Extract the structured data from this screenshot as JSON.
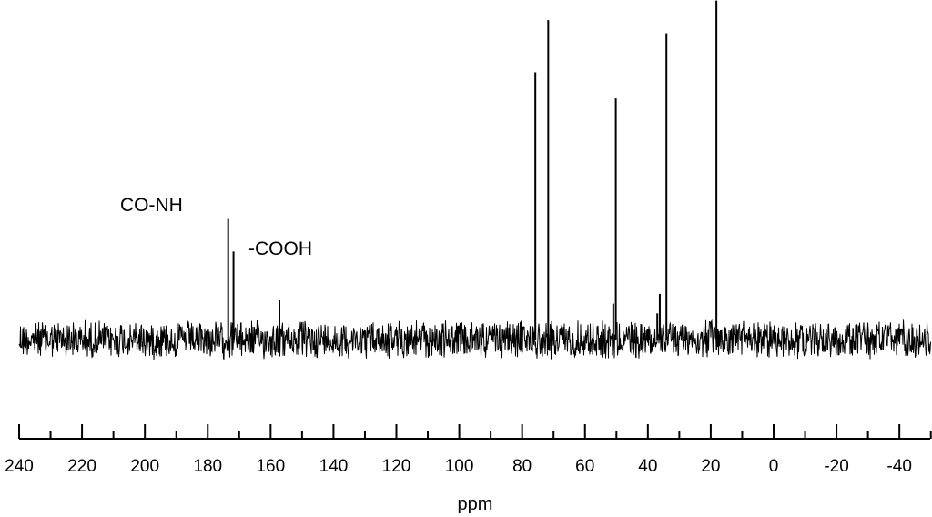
{
  "chart_data": {
    "type": "line",
    "title": "",
    "xlabel": "ppm",
    "ylabel": "",
    "x_reversed": true,
    "xlim": [
      240,
      -50
    ],
    "x_ticks": [
      240,
      220,
      200,
      180,
      160,
      140,
      120,
      100,
      80,
      60,
      40,
      20,
      0,
      -20,
      -40
    ],
    "x_tick_labels": [
      "240",
      "220",
      "200",
      "180",
      "160",
      "140",
      "120",
      "100",
      "80",
      "60",
      "40",
      "20",
      "0",
      "-20",
      "-40"
    ],
    "minor_tick_step": 10,
    "y_scale": "relative intensity",
    "grid": false,
    "peaks": [
      {
        "ppm": 173.5,
        "intensity": 0.37
      },
      {
        "ppm": 171.8,
        "intensity": 0.27
      },
      {
        "ppm": 157.2,
        "intensity": 0.12
      },
      {
        "ppm": 75.8,
        "intensity": 0.82
      },
      {
        "ppm": 71.7,
        "intensity": 0.98
      },
      {
        "ppm": 51.0,
        "intensity": 0.11
      },
      {
        "ppm": 50.2,
        "intensity": 0.74
      },
      {
        "ppm": 37.0,
        "intensity": 0.08
      },
      {
        "ppm": 36.2,
        "intensity": 0.14
      },
      {
        "ppm": 34.1,
        "intensity": 0.94
      },
      {
        "ppm": 18.2,
        "intensity": 1.04
      }
    ],
    "noise_amplitude": 0.05,
    "annotations": [
      {
        "text": "CO-NH",
        "ppm": 173.5
      },
      {
        "text": "-COOH",
        "ppm": 171.8
      }
    ]
  }
}
